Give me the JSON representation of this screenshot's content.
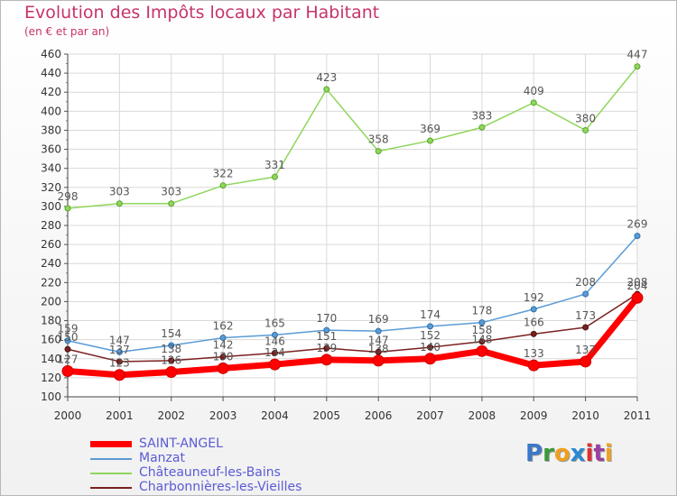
{
  "chart_data": {
    "type": "line",
    "title": "Evolution des Impôts locaux par Habitant",
    "subtitle": "(en € et par an)",
    "x": [
      "2000",
      "2001",
      "2002",
      "2003",
      "2004",
      "2005",
      "2006",
      "2007",
      "2008",
      "2009",
      "2010",
      "2011"
    ],
    "ylim": [
      100,
      460
    ],
    "yticks": [
      100,
      120,
      140,
      160,
      180,
      200,
      220,
      240,
      260,
      280,
      300,
      320,
      340,
      360,
      380,
      400,
      420,
      440,
      460
    ],
    "grid": true,
    "legend_position": "bottom-left",
    "series": [
      {
        "name": "Châteauneuf-les-Bains",
        "color": "#8fd65a",
        "values": [
          298,
          303,
          303,
          322,
          331,
          423,
          358,
          369,
          383,
          409,
          380,
          447
        ]
      },
      {
        "name": "Manzat",
        "color": "#5b9bd5",
        "values": [
          159,
          147,
          154,
          162,
          165,
          170,
          169,
          174,
          178,
          192,
          208,
          269
        ]
      },
      {
        "name": "Charbonnières-les-Vieilles",
        "color": "#7a2020",
        "values": [
          150,
          137,
          138,
          142,
          146,
          151,
          147,
          152,
          158,
          166,
          173,
          208
        ]
      },
      {
        "name": "SAINT-ANGEL",
        "color": "#ff0000",
        "values": [
          127,
          123,
          126,
          130,
          134,
          139,
          138,
          140,
          148,
          133,
          137,
          204
        ]
      }
    ]
  },
  "legend": {
    "items": [
      {
        "label": "SAINT-ANGEL",
        "color": "#ff0000",
        "label_color": "#5b5bd6"
      },
      {
        "label": "Manzat",
        "color": "#5b9bd5",
        "label_color": "#5b5bd6"
      },
      {
        "label": "Châteauneuf-les-Bains",
        "color": "#8fd65a",
        "label_color": "#5b5bd6"
      },
      {
        "label": "Charbonnières-les-Vieilles",
        "color": "#7a2020",
        "label_color": "#5b5bd6"
      }
    ]
  },
  "logo": {
    "letters": [
      "P",
      "r",
      "o",
      "x",
      "i",
      "t",
      "i"
    ],
    "colors": [
      "#3a78c8",
      "#3a9a3a",
      "#f0a020",
      "#2a8ad0",
      "#e03030",
      "#9a40a0",
      "#f0a020"
    ]
  }
}
